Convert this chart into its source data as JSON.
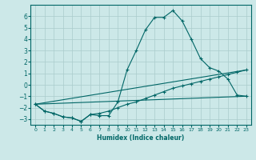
{
  "xlabel": "Humidex (Indice chaleur)",
  "xlim": [
    -0.5,
    23.5
  ],
  "ylim": [
    -3.5,
    7.0
  ],
  "yticks": [
    -3,
    -2,
    -1,
    0,
    1,
    2,
    3,
    4,
    5,
    6
  ],
  "xticks": [
    0,
    1,
    2,
    3,
    4,
    5,
    6,
    7,
    8,
    9,
    10,
    11,
    12,
    13,
    14,
    15,
    16,
    17,
    18,
    19,
    20,
    21,
    22,
    23
  ],
  "bg_color": "#cce8e8",
  "grid_color": "#aacccc",
  "line_color": "#006666",
  "lines": [
    {
      "x": [
        0,
        1,
        2,
        3,
        4,
        5,
        6,
        7,
        8,
        9,
        10,
        11,
        12,
        13,
        14,
        15,
        16,
        17,
        18,
        19,
        20,
        21,
        22,
        23
      ],
      "y": [
        -1.7,
        -2.3,
        -2.5,
        -2.8,
        -2.9,
        -3.2,
        -2.6,
        -2.7,
        -2.7,
        -1.5,
        1.3,
        3.0,
        4.8,
        5.9,
        5.9,
        6.5,
        5.6,
        4.0,
        2.3,
        1.5,
        1.2,
        0.5,
        -0.9,
        -1.0
      ],
      "marker": true
    },
    {
      "x": [
        0,
        1,
        2,
        3,
        4,
        5,
        6,
        7,
        8,
        9,
        10,
        11,
        12,
        13,
        14,
        15,
        16,
        17,
        18,
        19,
        20,
        21,
        22,
        23
      ],
      "y": [
        -1.7,
        -2.3,
        -2.5,
        -2.8,
        -2.9,
        -3.2,
        -2.6,
        -2.5,
        -2.3,
        -2.0,
        -1.7,
        -1.5,
        -1.2,
        -0.9,
        -0.6,
        -0.3,
        -0.1,
        0.1,
        0.3,
        0.5,
        0.7,
        0.9,
        1.1,
        1.3
      ],
      "marker": true
    },
    {
      "x": [
        0,
        23
      ],
      "y": [
        -1.7,
        -1.0
      ],
      "marker": false
    },
    {
      "x": [
        0,
        23
      ],
      "y": [
        -1.7,
        1.3
      ],
      "marker": false
    }
  ]
}
